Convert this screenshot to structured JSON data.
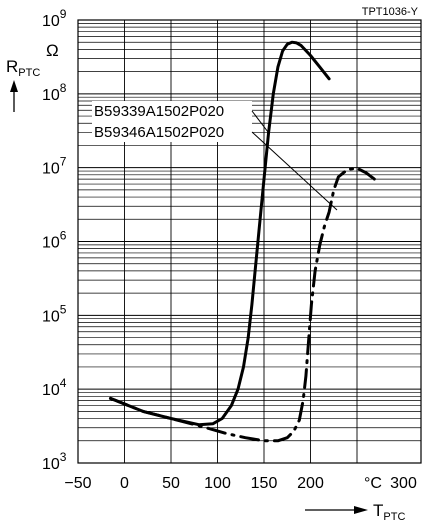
{
  "chart_data": {
    "type": "line",
    "figure_ref": "TPT1036-Y",
    "ylabel": "R",
    "ylabel_sub": "PTC",
    "yunit": "Ω",
    "xlabel": "T",
    "xlabel_sub": "PTC",
    "xunit": "°C",
    "xlim": [
      -50,
      300
    ],
    "ylim": [
      1000,
      1000000000
    ],
    "yscale": "log",
    "grid": true,
    "x_ticks": [
      "-50",
      "0",
      "50",
      "100",
      "150",
      "200",
      "300"
    ],
    "y_ticks": [
      {
        "base": "10",
        "exp": "3"
      },
      {
        "base": "10",
        "exp": "4"
      },
      {
        "base": "10",
        "exp": "5"
      },
      {
        "base": "10",
        "exp": "6"
      },
      {
        "base": "10",
        "exp": "7"
      },
      {
        "base": "10",
        "exp": "8"
      },
      {
        "base": "10",
        "exp": "9"
      }
    ],
    "series": [
      {
        "name": "B59339A1502P020",
        "style": "solid",
        "x": [
          -15,
          20,
          50,
          80,
          95,
          105,
          115,
          122,
          128,
          133,
          137,
          140,
          145,
          150,
          155,
          160,
          165,
          170,
          175,
          180,
          185,
          190,
          200,
          210,
          220
        ],
        "y": [
          7500,
          5000,
          4000,
          3300,
          3400,
          4000,
          6000,
          10000,
          20000,
          50000,
          140000,
          350000,
          1600000,
          7000000,
          30000000,
          100000000,
          230000000,
          380000000,
          470000000,
          500000000,
          490000000,
          450000000,
          330000000,
          230000000,
          160000000
        ]
      },
      {
        "name": "B59346A1502P020",
        "style": "dashdot",
        "x": [
          -15,
          20,
          50,
          80,
          110,
          130,
          150,
          165,
          175,
          182,
          188,
          192,
          195,
          198,
          201,
          205,
          210,
          215,
          220,
          225,
          230,
          240,
          250,
          260,
          270
        ],
        "y": [
          7500,
          5000,
          4000,
          3200,
          2500,
          2200,
          2000,
          2000,
          2200,
          2700,
          3800,
          7000,
          15000,
          45000,
          140000,
          400000,
          900000,
          1600000,
          2500000,
          5000000,
          7500000,
          9500000,
          9800000,
          8500000,
          6800000
        ]
      }
    ],
    "annotations": [
      {
        "text": "B59339A1502P020",
        "points_to": [
          148,
          25000000
        ]
      },
      {
        "text": "B59346A1502P020",
        "points_to": [
          220,
          3000000
        ]
      }
    ]
  }
}
